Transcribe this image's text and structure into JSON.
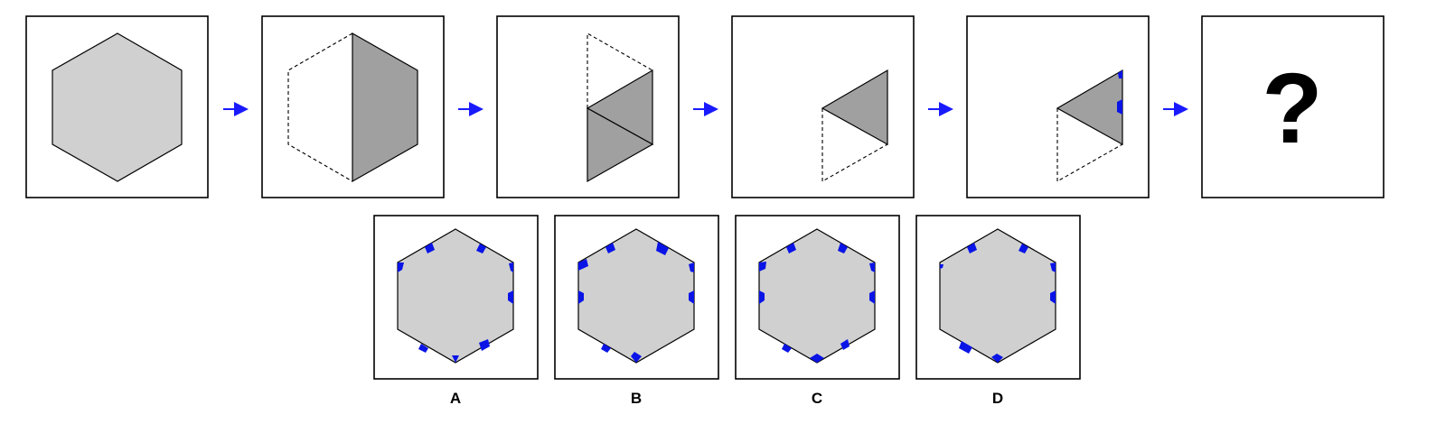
{
  "colors": {
    "light_gray": "#d0d0d0",
    "dark_gray": "#a0a0a0",
    "white": "#ffffff",
    "cut_blue": "#0a14e6",
    "arrow_blue": "#1a1aff",
    "line": "#000000"
  },
  "sequence": [
    {
      "step": 1,
      "shape": "full-hexagon"
    },
    {
      "step": 2,
      "shape": "hexagon-folded-in-half"
    },
    {
      "step": 3,
      "shape": "half-folded-into-triangles"
    },
    {
      "step": 4,
      "shape": "single-triangle"
    },
    {
      "step": 5,
      "shape": "triangle-with-cuts"
    },
    {
      "step": 6,
      "shape": "unknown",
      "text": "?"
    }
  ],
  "arrows": {
    "count": 5,
    "icon": "right-arrow-icon"
  },
  "options": [
    {
      "label": "A"
    },
    {
      "label": "B"
    },
    {
      "label": "C"
    },
    {
      "label": "D"
    }
  ]
}
